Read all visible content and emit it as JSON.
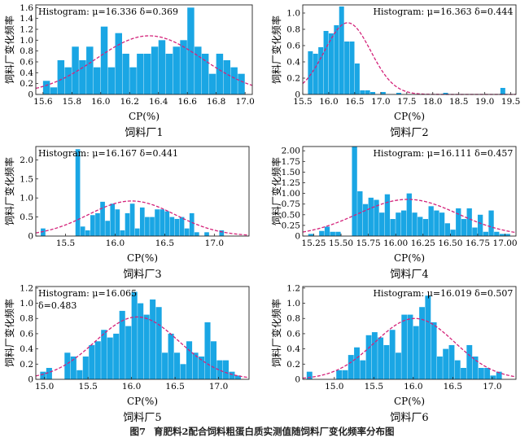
{
  "figure": {
    "caption_num": "图7",
    "caption_text": "育肥料2配合饲料粗蛋白质实测值随饲料厂变化频率分布图"
  },
  "chart_data": [
    {
      "type": "bar",
      "subtitle": "饲料厂1",
      "title": "Histogram: μ=16.336 δ=0.369",
      "xlabel": "CP(%)",
      "ylabel": "饲料厂变化频率",
      "xlim": [
        15.55,
        17.05
      ],
      "ylim": [
        0,
        1.65
      ],
      "xticks": [
        "15.6",
        "15.8",
        "16.0",
        "16.2",
        "16.4",
        "16.6",
        "16.8",
        "17.0"
      ],
      "yticks": [
        "0",
        "0.2",
        "0.4",
        "0.6",
        "0.8",
        "1.0",
        "1.2",
        "1.4",
        "1.6"
      ],
      "bin_start": 15.6,
      "bin_width": 0.05,
      "values": [
        0.25,
        0.13,
        0.63,
        0.5,
        0.88,
        0.63,
        0.88,
        0.5,
        1.25,
        0.5,
        1.13,
        0.75,
        0.5,
        0.75,
        0.75,
        0.88,
        1.0,
        0.75,
        0.88,
        1.0,
        1.6,
        0.88,
        0.75,
        0.38,
        0.75,
        0.63,
        0.5,
        0.38
      ],
      "curve": {
        "mu": 16.336,
        "sigma": 0.369,
        "peak": 1.08
      }
    },
    {
      "type": "bar",
      "subtitle": "饲料厂2",
      "title": "Histogram: μ=16.363 δ=0.444",
      "xlabel": "CP(%)",
      "ylabel": "饲料厂变化频率",
      "xlim": [
        15.5,
        19.6
      ],
      "ylim": [
        0,
        1.1
      ],
      "xticks": [
        "15.5",
        "16.0",
        "16.5",
        "17.0",
        "17.5",
        "18.0",
        "18.5",
        "19.0",
        "19.5"
      ],
      "yticks": [
        "0",
        "0.2",
        "0.4",
        "0.6",
        "0.8",
        "1.0"
      ],
      "bin_start": 15.6,
      "bin_width": 0.1,
      "values": [
        0.53,
        0.5,
        0.58,
        0.78,
        0.75,
        0.85,
        1.08,
        0.65,
        0.65,
        0.38,
        0.05,
        0.05,
        0.03,
        0,
        0.03,
        0,
        0,
        0.02,
        0,
        0,
        0,
        0,
        0,
        0,
        0,
        0,
        0.02,
        0,
        0,
        0,
        0,
        0,
        0,
        0,
        0,
        0,
        0,
        0.08
      ],
      "curve": {
        "mu": 16.363,
        "sigma": 0.444,
        "peak": 0.88
      }
    },
    {
      "type": "bar",
      "subtitle": "饲料厂3",
      "title": "Histogram: μ=16.167 δ=0.441",
      "xlabel": "CP(%)",
      "ylabel": "饲料厂变化频率",
      "xlim": [
        15.2,
        17.35
      ],
      "ylim": [
        0,
        2.35
      ],
      "xticks": [
        "15.5",
        "16.0",
        "16.5",
        "17.0"
      ],
      "yticks": [
        "0",
        "0.5",
        "1.0",
        "1.5",
        "2.0"
      ],
      "bin_start": 15.25,
      "bin_width": 0.05,
      "values": [
        0.2,
        0,
        0,
        0,
        0,
        0,
        0,
        2.28,
        0.25,
        0.15,
        0.55,
        0.6,
        0.9,
        0.4,
        0.85,
        0.7,
        0.15,
        0.6,
        0.85,
        0.2,
        0.75,
        0.5,
        0.5,
        0.7,
        0.7,
        0.65,
        0.5,
        0.45,
        0.5,
        0.2,
        0.6,
        0.1,
        0,
        0.1,
        0,
        0,
        0.15
      ],
      "curve": {
        "mu": 16.167,
        "sigma": 0.441,
        "peak": 0.92
      }
    },
    {
      "type": "bar",
      "subtitle": "饲料厂4",
      "title": "Histogram: μ=16.111 δ=0.457",
      "xlabel": "CP(%)",
      "ylabel": "饲料厂变化频率",
      "xlim": [
        15.15,
        17.1
      ],
      "ylim": [
        0,
        2.1
      ],
      "xticks": [
        "15.25",
        "15.50",
        "15.75",
        "16.00",
        "16.25",
        "16.50",
        "16.75",
        "17.00"
      ],
      "yticks": [
        "0",
        "0.25",
        "0.50",
        "0.75",
        "1.00",
        "1.25",
        "1.50",
        "1.75",
        "2.00"
      ],
      "bin_start": 15.2,
      "bin_width": 0.05,
      "values": [
        0.05,
        0,
        0.12,
        0.22,
        0.1,
        0.1,
        0,
        0,
        2.12,
        1.05,
        0.75,
        0.9,
        0.85,
        0.55,
        0.98,
        0.4,
        0.55,
        0.6,
        1.0,
        0.55,
        0.45,
        0.4,
        0.7,
        0.6,
        0.55,
        0.3,
        0.15,
        0.65,
        0.4,
        0.65,
        0.2,
        0.5,
        0.1,
        0.6,
        0.1,
        0.05,
        0.05
      ],
      "curve": {
        "mu": 16.111,
        "sigma": 0.457,
        "peak": 0.86
      }
    },
    {
      "type": "bar",
      "subtitle": "饲料厂5",
      "title": "Histogram: μ=16.065",
      "title2": "δ=0.483",
      "xlabel": "CP(%)",
      "ylabel": "饲料厂变化频率",
      "xlim": [
        14.9,
        17.35
      ],
      "ylim": [
        0,
        1.22
      ],
      "xticks": [
        "15.0",
        "15.5",
        "16.0",
        "16.5",
        "17.0"
      ],
      "yticks": [
        "0",
        "0.2",
        "0.4",
        "0.6",
        "0.8",
        "1.0",
        "1.2"
      ],
      "bin_start": 14.95,
      "bin_width": 0.07,
      "values": [
        0.1,
        0.15,
        0,
        0,
        0.35,
        0.3,
        0.12,
        0.3,
        0.45,
        0.5,
        0.65,
        0.55,
        0.6,
        0.9,
        0.7,
        1.15,
        1.0,
        0.85,
        1.05,
        0.95,
        0.35,
        0.6,
        0.35,
        0.2,
        0.5,
        0.35,
        0.3,
        0.75,
        0.5,
        0.25,
        0.25,
        0.1,
        0.05
      ],
      "curve": {
        "mu": 16.065,
        "sigma": 0.483,
        "peak": 0.82
      }
    },
    {
      "type": "bar",
      "subtitle": "饲料厂6",
      "title": "Histogram: μ=16.019 δ=0.507",
      "xlabel": "CP(%)",
      "ylabel": "饲料厂变化频率",
      "xlim": [
        14.6,
        17.3
      ],
      "ylim": [
        0,
        1.22
      ],
      "xticks": [
        "15.0",
        "15.5",
        "16.0",
        "16.5",
        "17.0"
      ],
      "yticks": [
        "0",
        "0.2",
        "0.4",
        "0.6",
        "0.8",
        "1.0",
        "1.2"
      ],
      "bin_start": 14.65,
      "bin_width": 0.075,
      "values": [
        0.1,
        0,
        0,
        0,
        0,
        0.12,
        0.12,
        0.32,
        0.42,
        0.25,
        0.58,
        0.62,
        0.55,
        0.45,
        0.65,
        0.35,
        0.85,
        0.85,
        0.7,
        0.95,
        1.1,
        0.75,
        0.3,
        0.4,
        0.45,
        0.25,
        0.15,
        0.45,
        0.3,
        0.15,
        0.15,
        0.05,
        0.1
      ],
      "curve": {
        "mu": 16.019,
        "sigma": 0.507,
        "peak": 0.8
      }
    }
  ]
}
